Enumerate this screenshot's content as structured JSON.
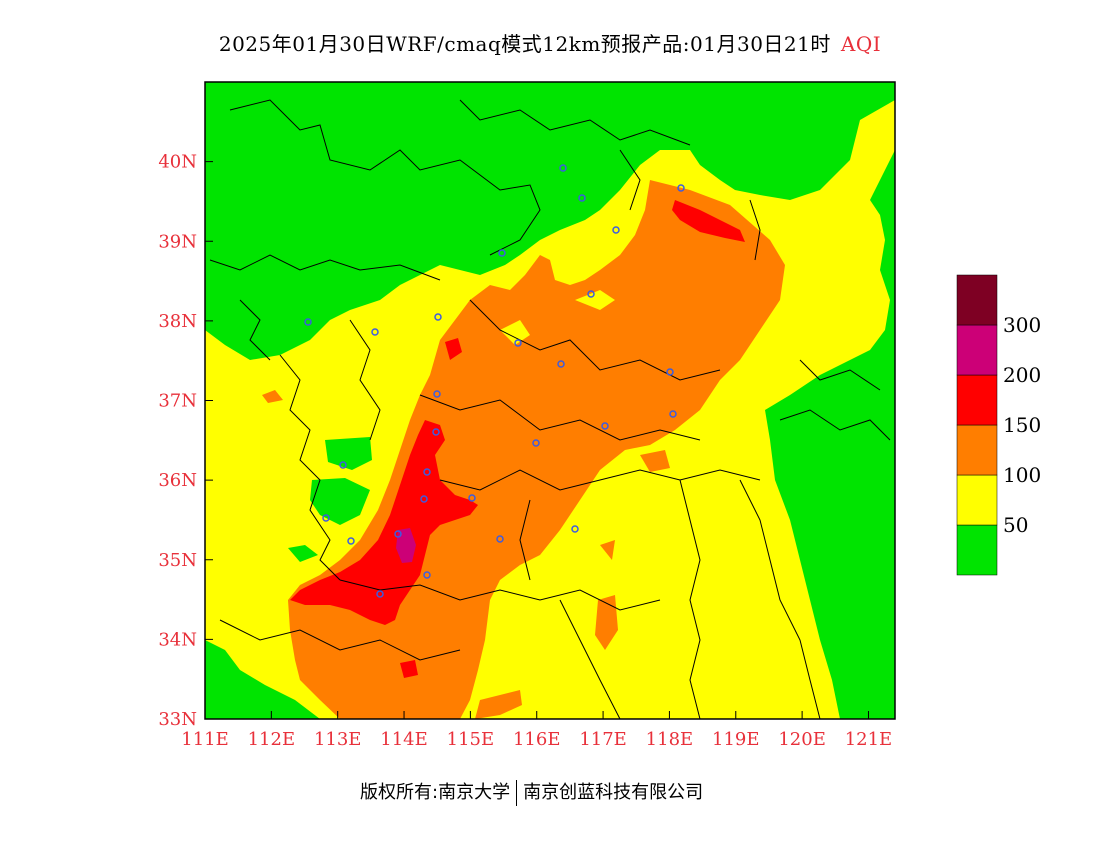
{
  "title": {
    "main": "2025年01月30日WRF/cmaq模式12km预报产品:01月30日21时",
    "variable": "AQI"
  },
  "axes": {
    "x_ticks": [
      "111E",
      "112E",
      "113E",
      "114E",
      "115E",
      "116E",
      "117E",
      "118E",
      "119E",
      "120E",
      "121E"
    ],
    "y_ticks": [
      "33N",
      "34N",
      "35N",
      "36N",
      "37N",
      "38N",
      "39N",
      "40N"
    ],
    "lon_range": [
      111,
      121.4
    ],
    "lat_range": [
      33,
      41
    ]
  },
  "legend": {
    "labels": [
      "50",
      "100",
      "150",
      "200",
      "300"
    ],
    "colors": [
      "#00e400",
      "#ffff00",
      "#ff7e00",
      "#ff0000",
      "#cc0077",
      "#7e0023"
    ]
  },
  "credit": {
    "left": "版权所有:南京大学",
    "right": "南京创蓝科技有限公司"
  },
  "colors": {
    "good": "#00e400",
    "moderate": "#ffff00",
    "usg": "#ff7e00",
    "unhealthy": "#ff0000",
    "very_unhealthy": "#cc0077",
    "hazardous": "#7e0023",
    "tick_label": "#e8303a",
    "station": "#3d5ce0"
  }
}
